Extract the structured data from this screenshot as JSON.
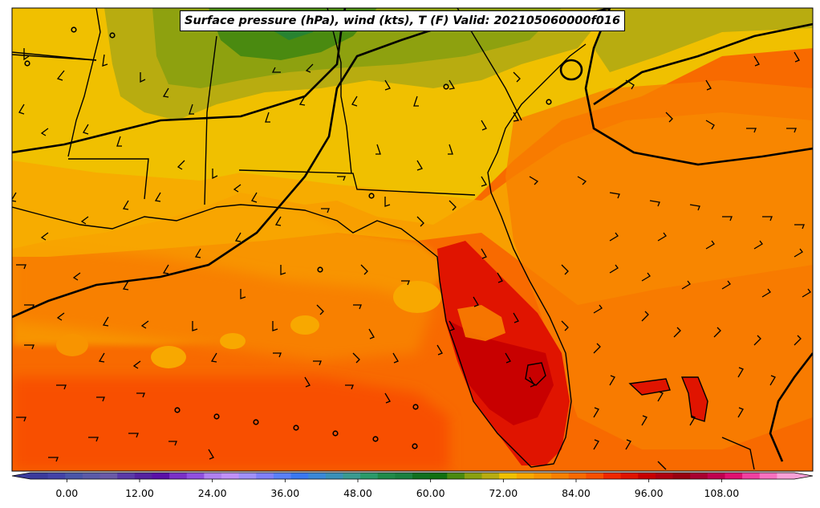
{
  "title": "Surface pressure (hPa), wind (kts), T (F) Valid: 202105060000f016",
  "colorbar": {
    "tick_labels": [
      "0.00",
      "12.00",
      "24.00",
      "36.00",
      "48.00",
      "60.00",
      "72.00",
      "84.00",
      "96.00",
      "108.00"
    ],
    "tick_values": [
      0,
      12,
      24,
      36,
      48,
      60,
      72,
      84,
      96,
      108
    ],
    "min": -6,
    "max": 120,
    "step": 3,
    "extend": "both",
    "colors": [
      "#3b3b9c",
      "#4343a8",
      "#4a55a8",
      "#5a5aa8",
      "#6a5aa8",
      "#5a3aa8",
      "#5522a0",
      "#5a10a8",
      "#7a30c8",
      "#9050e0",
      "#b080f0",
      "#c090f8",
      "#a090f8",
      "#8080f8",
      "#5a80f8",
      "#3a78f0",
      "#3a88d8",
      "#3a90b8",
      "#3a9a90",
      "#2a9a6a",
      "#208a4a",
      "#1a8040",
      "#107020",
      "#107010",
      "#4a8a10",
      "#8aa010",
      "#b8ac10",
      "#f0c000",
      "#f8a800",
      "#f89400",
      "#f88000",
      "#f86a00",
      "#f85000",
      "#f02800",
      "#e01400",
      "#c80000",
      "#b00010",
      "#980010",
      "#a80030",
      "#c00050",
      "#e01070",
      "#f040a0",
      "#f870c0",
      "#f8a0d8"
    ]
  }
}
